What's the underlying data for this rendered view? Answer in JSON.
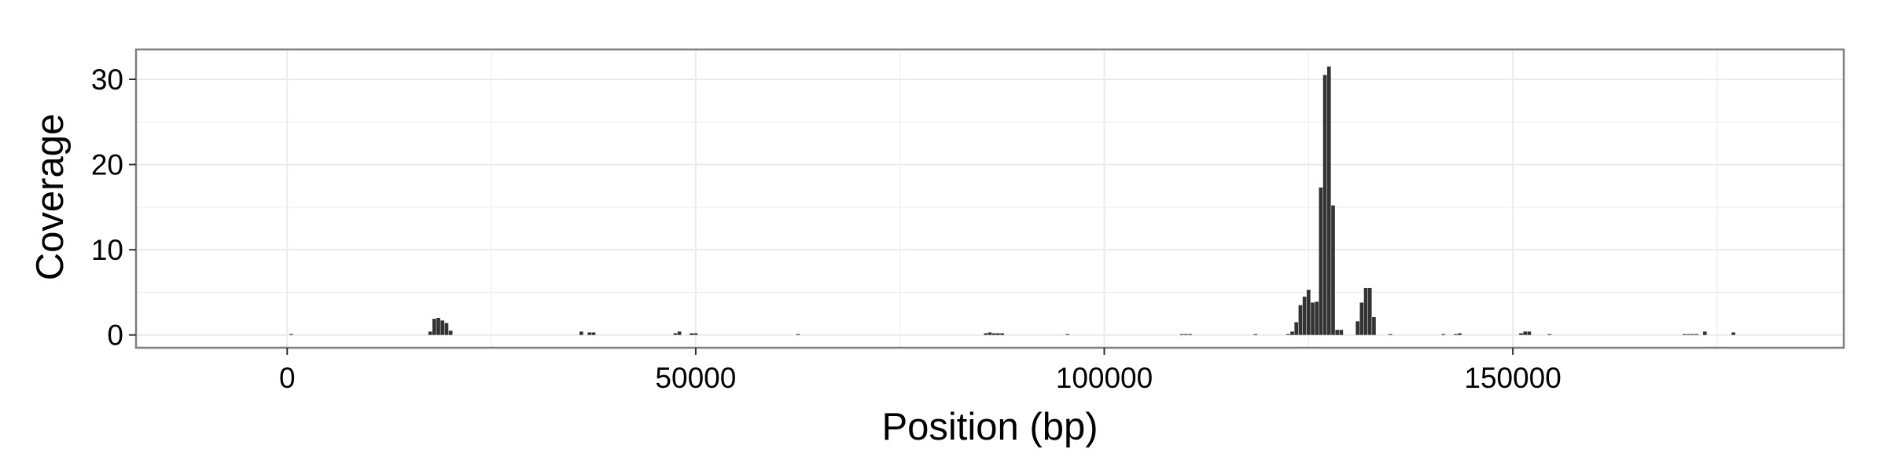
{
  "chart_data": {
    "type": "bar",
    "title": "",
    "xlabel": "Position (bp)",
    "ylabel": "Coverage",
    "xlim": [
      -18500,
      190500
    ],
    "ylim": [
      -1.5,
      33.5
    ],
    "x_ticks": [
      0,
      50000,
      100000,
      150000
    ],
    "x_minor_ticks": [
      25000,
      75000,
      125000,
      175000
    ],
    "y_ticks": [
      0,
      10,
      20,
      30
    ],
    "y_minor_ticks": [
      5,
      15,
      25
    ],
    "grid": true,
    "bar_width": 450,
    "bar_color": "#333333",
    "panel_background": "#ffffff",
    "grid_color": "#ebebeb",
    "border_color": "#7f7f7f",
    "series": [
      {
        "x": [
          500,
          17500,
          18000,
          18500,
          19000,
          19500,
          20000,
          36000,
          37000,
          37500,
          47500,
          48000,
          49500,
          50000,
          62500,
          85500,
          86000,
          86500,
          87000,
          87500,
          95500,
          109500,
          110000,
          110500,
          118500,
          122500,
          123000,
          123500,
          124000,
          124500,
          125000,
          125500,
          126000,
          126500,
          127000,
          127500,
          128000,
          128500,
          129000,
          131000,
          131500,
          132000,
          132500,
          133000,
          135000,
          141500,
          143000,
          143500,
          151000,
          151500,
          152000,
          154500,
          171000,
          171500,
          172000,
          172500,
          173500,
          177000
        ],
        "y": [
          0.1,
          0.4,
          1.9,
          2.0,
          1.7,
          1.4,
          0.5,
          0.4,
          0.3,
          0.3,
          0.2,
          0.4,
          0.2,
          0.2,
          0.1,
          0.2,
          0.3,
          0.2,
          0.2,
          0.2,
          0.1,
          0.1,
          0.1,
          0.1,
          0.1,
          0.1,
          0.4,
          1.5,
          3.5,
          4.5,
          5.3,
          3.8,
          3.9,
          17.3,
          30.5,
          31.5,
          15.2,
          0.6,
          0.6,
          1.6,
          3.8,
          5.5,
          5.5,
          2.1,
          0.1,
          0.1,
          0.1,
          0.2,
          0.2,
          0.4,
          0.4,
          0.1,
          0.1,
          0.1,
          0.1,
          0.1,
          0.4,
          0.3
        ]
      }
    ]
  }
}
